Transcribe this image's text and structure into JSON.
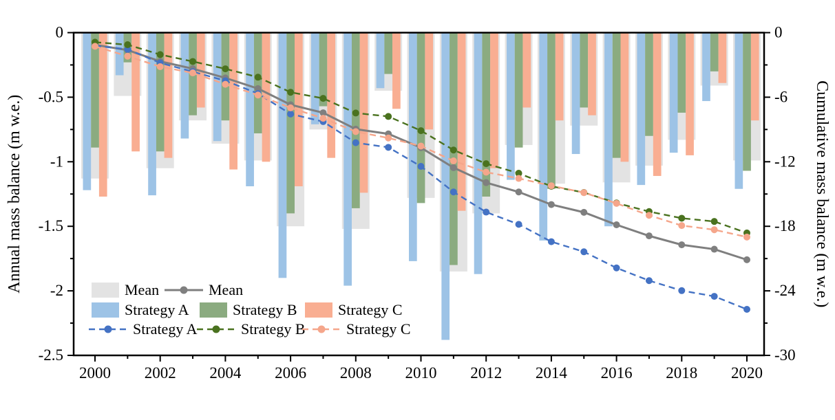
{
  "chart_data": {
    "type": "bar",
    "subtype": "grouped-bars-with-cumulative-lines",
    "years": [
      2000,
      2001,
      2002,
      2003,
      2004,
      2005,
      2006,
      2007,
      2008,
      2009,
      2010,
      2011,
      2012,
      2013,
      2014,
      2015,
      2016,
      2017,
      2018,
      2019,
      2020
    ],
    "x_tick_labels": [
      "2000",
      "2002",
      "2004",
      "2006",
      "2008",
      "2010",
      "2012",
      "2014",
      "2016",
      "2018",
      "2020"
    ],
    "left_axis": {
      "label": "Annual mass balance (m w.e.)",
      "tick_labels": [
        "0",
        "-0.5",
        "-1",
        "-1.5",
        "-2",
        "-2.5"
      ],
      "tick_values": [
        0,
        -0.5,
        -1,
        -1.5,
        -2,
        -2.5
      ],
      "minor_step": 0.25,
      "range": [
        0,
        -2.5
      ]
    },
    "right_axis": {
      "label": "Cumulative mass balance (m w.e.)",
      "tick_labels": [
        "0",
        "-6",
        "-12",
        "-18",
        "-24",
        "-30"
      ],
      "tick_values": [
        0,
        -6,
        -12,
        -18,
        -24,
        -30
      ],
      "minor_step": 3,
      "range": [
        0,
        -30
      ]
    },
    "bar_series": [
      {
        "name": "Mean",
        "color": "#E3E3E3",
        "values": [
          -1.13,
          -0.49,
          -1.05,
          -0.68,
          -0.86,
          -0.99,
          -1.5,
          -0.75,
          -1.52,
          -0.45,
          -1.28,
          -1.85,
          -1.4,
          -0.87,
          -1.17,
          -0.72,
          -1.16,
          -1.03,
          -0.83,
          -0.41,
          -0.99
        ]
      },
      {
        "name": "Strategy A",
        "color": "#9DC3E6",
        "values": [
          -1.22,
          -0.33,
          -1.26,
          -0.82,
          -0.84,
          -1.19,
          -1.9,
          -0.71,
          -1.96,
          -0.43,
          -1.77,
          -2.38,
          -1.87,
          -1.14,
          -1.61,
          -0.94,
          -1.5,
          -1.18,
          -0.93,
          -0.53,
          -1.21
        ]
      },
      {
        "name": "Strategy B",
        "color": "#8BAB80",
        "values": [
          -0.89,
          -0.23,
          -0.92,
          -0.64,
          -0.68,
          -0.78,
          -1.4,
          -0.57,
          -1.36,
          -0.32,
          -1.32,
          -1.8,
          -1.27,
          -0.89,
          -1.21,
          -0.58,
          -0.97,
          -0.8,
          -0.62,
          -0.3,
          -1.07
        ]
      },
      {
        "name": "Strategy C",
        "color": "#F9AE92",
        "values": [
          -1.27,
          -0.92,
          -0.97,
          -0.58,
          -1.06,
          -1.0,
          -1.19,
          -0.97,
          -1.24,
          -0.59,
          -0.75,
          -1.38,
          -1.05,
          -0.58,
          -0.68,
          -0.64,
          -1.0,
          -1.11,
          -0.95,
          -0.39,
          -0.68
        ]
      }
    ],
    "line_series": [
      {
        "name": "Mean",
        "color": "#7F7F7F",
        "style": "solid",
        "values": [
          -1.13,
          -1.62,
          -2.67,
          -3.35,
          -4.21,
          -5.2,
          -6.7,
          -7.45,
          -8.97,
          -9.41,
          -10.69,
          -12.55,
          -13.94,
          -14.81,
          -15.98,
          -16.7,
          -17.86,
          -18.89,
          -19.72,
          -20.13,
          -21.11
        ]
      },
      {
        "name": "Strategy A",
        "color": "#4472C4",
        "style": "dashed",
        "values": [
          -1.22,
          -1.55,
          -2.81,
          -3.63,
          -4.47,
          -5.66,
          -7.56,
          -8.27,
          -10.23,
          -10.66,
          -12.43,
          -14.81,
          -16.68,
          -17.82,
          -19.43,
          -20.37,
          -21.87,
          -23.05,
          -23.98,
          -24.51,
          -25.72
        ]
      },
      {
        "name": "Strategy B",
        "color": "#4A721F",
        "style": "dashed",
        "values": [
          -0.89,
          -1.12,
          -2.04,
          -2.68,
          -3.36,
          -4.14,
          -5.54,
          -6.11,
          -7.47,
          -7.79,
          -9.11,
          -10.91,
          -12.18,
          -13.07,
          -14.28,
          -14.86,
          -15.83,
          -16.63,
          -17.25,
          -17.55,
          -18.62
        ]
      },
      {
        "name": "Strategy C",
        "color": "#F5A68B",
        "style": "dashed",
        "values": [
          -1.27,
          -2.19,
          -3.16,
          -3.74,
          -4.8,
          -5.8,
          -6.99,
          -7.96,
          -9.2,
          -9.79,
          -10.54,
          -11.92,
          -12.97,
          -13.55,
          -14.23,
          -14.87,
          -15.87,
          -16.98,
          -17.93,
          -18.32,
          -19.0
        ]
      }
    ],
    "legend": {
      "rows": [
        [
          {
            "type": "bar",
            "color": "#E3E3E3",
            "label": "Mean"
          },
          {
            "type": "line",
            "style": "solid",
            "color": "#7F7F7F",
            "label": "Mean"
          }
        ],
        [
          {
            "type": "bar",
            "color": "#9DC3E6",
            "label": "Strategy A"
          },
          {
            "type": "bar",
            "color": "#8BAB80",
            "label": "Strategy B"
          },
          {
            "type": "bar",
            "color": "#F9AE92",
            "label": "Strategy C"
          }
        ],
        [
          {
            "type": "line",
            "style": "dashed",
            "color": "#4472C4",
            "label": "Strategy A"
          },
          {
            "type": "line",
            "style": "dashed",
            "color": "#4A721F",
            "label": "Strategy B"
          },
          {
            "type": "line",
            "style": "dashed",
            "color": "#F5A68B",
            "label": "Strategy C"
          }
        ]
      ]
    },
    "axis_color": "#000000",
    "grid": false,
    "legend_position": "lower-left-inside"
  }
}
